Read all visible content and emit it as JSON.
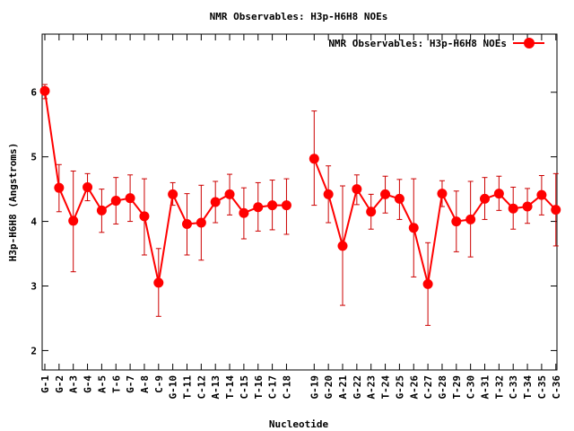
{
  "chart_data": {
    "type": "line",
    "title": "NMR Observables: H3p-H6H8 NOEs",
    "xlabel": "Nucleotide",
    "ylabel": "H3p-H6H8 (Angstroms)",
    "ylim": [
      1.7,
      6.9
    ],
    "yticks": [
      2,
      3,
      4,
      5,
      6
    ],
    "grid": false,
    "legend_position": "top-right",
    "series_color": "#ff0000",
    "error_color": "#cc0000",
    "categories": [
      "G-1",
      "G-2",
      "A-3",
      "G-4",
      "A-5",
      "T-6",
      "G-7",
      "A-8",
      "C-9",
      "G-10",
      "T-11",
      "C-12",
      "A-13",
      "T-14",
      "C-15",
      "T-16",
      "C-17",
      "C-18",
      "G-19",
      "G-20",
      "A-21",
      "G-22",
      "A-23",
      "T-24",
      "G-25",
      "A-26",
      "C-27",
      "G-28",
      "T-29",
      "C-30",
      "A-31",
      "T-32",
      "C-33",
      "T-34",
      "C-35",
      "C-36"
    ],
    "series": [
      {
        "name": "NMR Observables: H3p-H6H8 NOEs",
        "segments": [
          {
            "categories": [
              "G-1",
              "G-2",
              "A-3",
              "G-4",
              "A-5",
              "T-6",
              "G-7",
              "A-8",
              "C-9",
              "G-10",
              "T-11",
              "C-12",
              "A-13",
              "T-14",
              "C-15",
              "T-16",
              "C-17",
              "C-18"
            ],
            "values": [
              6.02,
              4.52,
              4.01,
              4.53,
              4.17,
              4.32,
              4.36,
              4.08,
              3.05,
              4.42,
              3.96,
              3.98,
              4.3,
              4.42,
              4.13,
              4.22,
              4.25,
              4.25
            ],
            "err_low": [
              5.9,
              4.15,
              3.22,
              4.32,
              3.83,
              3.96,
              4.0,
              3.48,
              2.53,
              4.25,
              3.48,
              3.4,
              3.98,
              4.1,
              3.73,
              3.85,
              3.87,
              3.8
            ],
            "err_high": [
              6.12,
              4.88,
              4.78,
              4.74,
              4.5,
              4.68,
              4.72,
              4.66,
              3.58,
              4.6,
              4.43,
              4.56,
              4.62,
              4.73,
              4.52,
              4.6,
              4.64,
              4.66
            ]
          },
          {
            "categories": [
              "G-19",
              "G-20",
              "A-21",
              "G-22",
              "A-23",
              "T-24",
              "G-25",
              "A-26",
              "C-27",
              "G-28",
              "T-29",
              "C-30",
              "A-31",
              "T-32",
              "C-33",
              "T-34",
              "C-35",
              "C-36"
            ],
            "values": [
              4.97,
              4.42,
              3.62,
              4.5,
              4.15,
              4.42,
              4.35,
              3.9,
              3.03,
              4.43,
              4.0,
              4.03,
              4.35,
              4.43,
              4.2,
              4.23,
              4.41,
              4.18
            ],
            "err_low": [
              4.25,
              3.98,
              2.7,
              4.26,
              3.88,
              4.13,
              4.03,
              3.14,
              2.39,
              4.23,
              3.53,
              3.45,
              4.03,
              4.17,
              3.88,
              3.97,
              4.1,
              3.62
            ],
            "err_high": [
              5.71,
              4.86,
              4.55,
              4.72,
              4.42,
              4.7,
              4.65,
              4.66,
              3.67,
              4.63,
              4.47,
              4.62,
              4.68,
              4.7,
              4.53,
              4.51,
              4.71,
              4.74
            ]
          }
        ]
      }
    ]
  }
}
